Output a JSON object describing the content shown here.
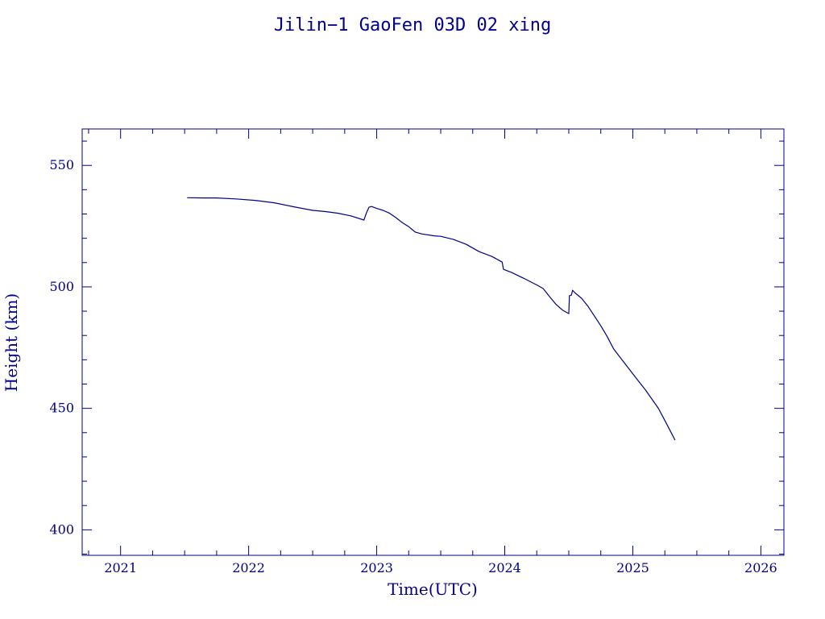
{
  "chart_data": {
    "type": "line",
    "title": "Jilin−1 GaoFen 03D 02 xing",
    "xlabel": "Time(UTC)",
    "ylabel": "Height (km)",
    "xlim": [
      2020.7,
      2026.18
    ],
    "ylim": [
      389.5,
      565
    ],
    "x_ticks": [
      "2021",
      "2022",
      "2023",
      "2024",
      "2025",
      "2026"
    ],
    "y_ticks": [
      "400",
      "450",
      "500",
      "550"
    ],
    "grid": false,
    "series": [
      {
        "color": "#00008b",
        "x": [
          2021.52,
          2021.65,
          2021.75,
          2021.9,
          2022.05,
          2022.2,
          2022.35,
          2022.5,
          2022.6,
          2022.7,
          2022.8,
          2022.9,
          2022.92,
          2022.94,
          2022.96,
          2023.0,
          2023.05,
          2023.1,
          2023.15,
          2023.2,
          2023.25,
          2023.3,
          2023.35,
          2023.45,
          2023.5,
          2023.6,
          2023.7,
          2023.8,
          2023.9,
          2023.98,
          2023.99,
          2024.05,
          2024.15,
          2024.25,
          2024.3,
          2024.35,
          2024.4,
          2024.45,
          2024.5,
          2024.505,
          2024.52,
          2024.53,
          2024.55,
          2024.6,
          2024.65,
          2024.7,
          2024.75,
          2024.8,
          2024.85,
          2024.9,
          2025.0,
          2025.1,
          2025.2,
          2025.25,
          2025.3,
          2025.33
        ],
        "y": [
          536.7,
          536.6,
          536.6,
          536.2,
          535.6,
          534.6,
          533.0,
          531.5,
          531.0,
          530.3,
          529.2,
          527.5,
          530.5,
          532.8,
          533.1,
          532.3,
          531.5,
          530.3,
          528.5,
          526.4,
          524.8,
          522.6,
          521.8,
          521.0,
          520.8,
          519.5,
          517.5,
          514.5,
          512.5,
          510.2,
          507.2,
          506.0,
          503.5,
          500.8,
          499.3,
          496.0,
          492.8,
          490.5,
          489.0,
          496.4,
          496.6,
          498.6,
          497.5,
          495.3,
          492.0,
          488.0,
          484.0,
          479.5,
          474.5,
          471.0,
          464.2,
          457.5,
          450.0,
          445.0,
          440.0,
          436.9
        ]
      }
    ]
  }
}
